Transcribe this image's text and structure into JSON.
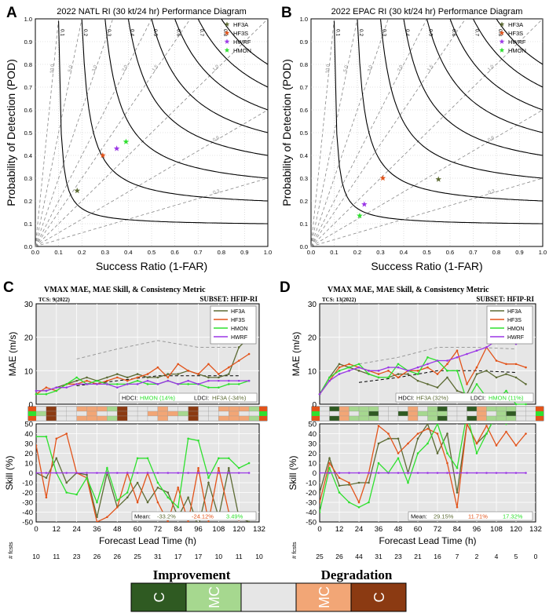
{
  "panel_letters": [
    "A",
    "B",
    "C",
    "D"
  ],
  "perf_axes": {
    "xlabel": "Success Ratio (1-FAR)",
    "ylabel": "Probability of Detection (POD)",
    "ticks": [
      "0.0",
      "0.1",
      "0.2",
      "0.3",
      "0.4",
      "0.5",
      "0.6",
      "0.7",
      "0.8",
      "0.9",
      "1.0"
    ],
    "csi_labels": [
      "0.1",
      "0.2",
      "0.3",
      "0.4",
      "0.5",
      "0.6",
      "0.7",
      "0.8"
    ],
    "bias_labels": [
      "10.0",
      "5.0",
      "3.0",
      "2.0",
      "1.5",
      "1.0",
      "0.6",
      "0.3"
    ]
  },
  "ts_axes": {
    "x_ticks": [
      "0",
      "12",
      "24",
      "36",
      "48",
      "60",
      "72",
      "84",
      "96",
      "108",
      "120",
      "132"
    ],
    "mae_ticks": [
      "0",
      "10",
      "20",
      "30"
    ],
    "skill_ticks": [
      "-50",
      "-40",
      "-30",
      "-20",
      "-10",
      "0",
      "10",
      "20",
      "30",
      "40",
      "50"
    ],
    "mae_label": "MAE (m/s)",
    "skill_label": "Skill (%)",
    "xlabel": "Forecast Lead Time (h)",
    "nfcst_label": "# fcsts"
  },
  "colors": {
    "HF3A": "#5d6b35",
    "HF3S": "#e2531a",
    "HWRF": "#9b37e6",
    "HMON": "#2fe02f",
    "grid": "#c8c8c8",
    "panel_bg": "#e6e6e6"
  },
  "legend_text": {
    "hdci": "HDCI:",
    "ldci": "LDCI:",
    "mean": "Mean:"
  },
  "bottom_legend": {
    "improvement": "Improvement",
    "degradation": "Degradation",
    "c": "C",
    "mc": "MC",
    "colors": [
      "#2f5a22",
      "#a6d88f",
      "#e6e6e6",
      "#f2a676",
      "#8b3a12"
    ]
  },
  "chart_data": [
    {
      "type": "scatter",
      "panel": "A",
      "title": "2022 NATL RI (30 kt/24 hr) Performance Diagram",
      "xlabel": "Success Ratio (1-FAR)",
      "ylabel": "Probability of Detection (POD)",
      "xlim": [
        0,
        1
      ],
      "ylim": [
        0,
        1
      ],
      "series": [
        {
          "name": "HF3A",
          "x": 0.18,
          "y": 0.245
        },
        {
          "name": "HF3S",
          "x": 0.29,
          "y": 0.4
        },
        {
          "name": "HWRF",
          "x": 0.35,
          "y": 0.43
        },
        {
          "name": "HMON",
          "x": 0.39,
          "y": 0.46
        }
      ]
    },
    {
      "type": "scatter",
      "panel": "B",
      "title": "2022 EPAC RI (30 kt/24 hr) Performance Diagram",
      "xlabel": "Success Ratio (1-FAR)",
      "ylabel": "Probability of Detection (POD)",
      "xlim": [
        0,
        1
      ],
      "ylim": [
        0,
        1
      ],
      "series": [
        {
          "name": "HF3A",
          "x": 0.55,
          "y": 0.295
        },
        {
          "name": "HF3S",
          "x": 0.31,
          "y": 0.3
        },
        {
          "name": "HWRF",
          "x": 0.23,
          "y": 0.185
        },
        {
          "name": "HMON",
          "x": 0.21,
          "y": 0.135
        }
      ]
    },
    {
      "type": "line",
      "panel": "C",
      "title": "VMAX MAE, MAE Skill, & Consistency Metric",
      "tcs": "TCS: 9(2022)",
      "subset": "SUBSET: HFIP-RI",
      "x": [
        0,
        6,
        12,
        18,
        24,
        30,
        36,
        42,
        48,
        54,
        60,
        66,
        72,
        78,
        84,
        90,
        96,
        102,
        108,
        114,
        120,
        126
      ],
      "mae_ylim": [
        0,
        30
      ],
      "skill_ylim": [
        -50,
        50
      ],
      "mae": [
        {
          "name": "HF3A",
          "values": [
            4,
            4,
            5,
            6,
            7,
            8,
            7,
            8,
            9,
            8,
            9,
            8,
            8,
            9,
            9,
            10,
            9,
            8,
            8,
            9,
            17,
            20
          ]
        },
        {
          "name": "HF3S",
          "values": [
            3,
            5,
            4,
            6,
            6,
            7,
            6,
            7,
            8,
            7,
            8,
            9,
            11,
            8,
            12,
            10,
            9,
            12,
            9,
            11,
            13,
            15
          ]
        },
        {
          "name": "HMON",
          "values": [
            3,
            3,
            4,
            6,
            8,
            6,
            7,
            6,
            6,
            6,
            7,
            6,
            6,
            7,
            6,
            6,
            6,
            5,
            5,
            6,
            6,
            7
          ]
        },
        {
          "name": "HWRF",
          "values": [
            4,
            4,
            5,
            5,
            6,
            6,
            6,
            6,
            5,
            6,
            6,
            7,
            6,
            7,
            6,
            7,
            6,
            7,
            7,
            7,
            7,
            7
          ]
        }
      ],
      "mae_reference": [
        {
          "name": "high-error reference",
          "x": [
            24,
            48,
            72,
            96,
            120
          ],
          "values": [
            13.5,
            16.5,
            19,
            17,
            17
          ]
        },
        {
          "name": "low-error reference",
          "x": [
            24,
            48,
            72,
            96,
            120
          ],
          "values": [
            5.5,
            7,
            8.5,
            8.5,
            8.5
          ]
        }
      ],
      "skill": [
        {
          "name": "HF3A",
          "values": [
            0,
            -5,
            15,
            -10,
            0,
            -2,
            -45,
            0,
            -35,
            -25,
            -10,
            -30,
            -15,
            -20,
            -45,
            -25,
            -55,
            -10,
            -45,
            5,
            -45,
            -50
          ]
        },
        {
          "name": "HF3S",
          "values": [
            28,
            -25,
            35,
            40,
            0,
            -5,
            -50,
            -45,
            -35,
            0,
            -30,
            0,
            -30,
            -50,
            -15,
            -50,
            5,
            -50,
            5,
            -40,
            -48,
            -45
          ]
        },
        {
          "name": "HMON",
          "values": [
            37,
            37,
            0,
            -20,
            -22,
            -5,
            -30,
            5,
            -28,
            -20,
            15,
            15,
            -10,
            -25,
            -35,
            35,
            33,
            -5,
            15,
            15,
            5,
            10
          ]
        },
        {
          "name": "HWRF",
          "values": [
            0,
            0,
            0,
            0,
            0,
            0,
            0,
            0,
            0,
            0,
            0,
            0,
            0,
            0,
            0,
            0,
            0,
            0,
            0,
            0,
            0,
            0
          ]
        }
      ],
      "hdci": "HMON (14%)",
      "ldci": "HF3A (-34%)",
      "mean_skill": [
        "-33.2%",
        "-24.12%",
        "3.49%"
      ],
      "n_forecasts": [
        "10",
        "11",
        "23",
        "26",
        "26",
        "25",
        "31",
        "17",
        "17",
        "10",
        "11",
        "10"
      ]
    },
    {
      "type": "line",
      "panel": "D",
      "title": "VMAX MAE, MAE Skill, & Consistency Metric",
      "tcs": "TCS: 13(2022)",
      "subset": "SUBSET: HFIP-RI",
      "x": [
        0,
        6,
        12,
        18,
        24,
        30,
        36,
        42,
        48,
        54,
        60,
        66,
        72,
        78,
        84,
        90,
        96,
        102,
        108,
        114,
        120,
        126
      ],
      "mae_ylim": [
        0,
        30
      ],
      "skill_ylim": [
        -50,
        50
      ],
      "mae": [
        {
          "name": "HF3A",
          "values": [
            3,
            8,
            12,
            11,
            10,
            9,
            8,
            8,
            9,
            9,
            7,
            6,
            5,
            8,
            4,
            3,
            9,
            10,
            8,
            9,
            8,
            6
          ]
        },
        {
          "name": "HF3S",
          "values": [
            3,
            7,
            11,
            12,
            11,
            10,
            9,
            10,
            8,
            10,
            10,
            11,
            9,
            12,
            16,
            6,
            11,
            17,
            13,
            12,
            12,
            11
          ]
        },
        {
          "name": "HMON",
          "values": [
            3,
            8,
            10,
            11,
            12,
            9,
            8,
            8,
            12,
            10,
            9,
            14,
            13,
            10,
            10,
            1,
            6,
            2,
            1,
            4,
            0,
            0
          ]
        },
        {
          "name": "HWRF",
          "values": [
            3,
            7,
            9,
            10,
            11,
            10,
            10,
            11,
            11,
            10,
            11,
            12,
            13,
            13,
            14,
            15,
            16,
            17,
            19,
            20,
            18,
            21
          ]
        }
      ],
      "mae_reference": [
        {
          "name": "high-error reference",
          "x": [
            24,
            48,
            72,
            96,
            120
          ],
          "values": [
            12,
            14,
            17,
            17,
            16.5
          ]
        },
        {
          "name": "low-error reference",
          "x": [
            24,
            48,
            72,
            96,
            120
          ],
          "values": [
            6.5,
            8,
            10,
            10,
            9.5
          ]
        }
      ],
      "skill": [
        {
          "name": "HF3A",
          "values": [
            -20,
            15,
            -13,
            -12,
            -10,
            -10,
            30,
            35,
            35,
            0,
            35,
            50,
            20,
            40,
            -20,
            50,
            30,
            40,
            60,
            50,
            60,
            65
          ]
        },
        {
          "name": "HF3S",
          "values": [
            -30,
            10,
            -5,
            -10,
            -30,
            0,
            48,
            40,
            20,
            30,
            40,
            45,
            40,
            10,
            -35,
            50,
            30,
            48,
            28,
            42,
            28,
            40
          ]
        },
        {
          "name": "HMON",
          "values": [
            -40,
            5,
            -20,
            -30,
            -35,
            -30,
            10,
            0,
            15,
            -10,
            20,
            30,
            50,
            20,
            5,
            60,
            20,
            40,
            60,
            50,
            70,
            65
          ]
        },
        {
          "name": "HWRF",
          "values": [
            0,
            0,
            0,
            0,
            0,
            0,
            0,
            0,
            0,
            0,
            0,
            0,
            0,
            0,
            0,
            0,
            0,
            0,
            0,
            0,
            0,
            0
          ]
        }
      ],
      "hdci": "HF3A (32%)",
      "ldci": "HMON (11%)",
      "mean_skill": [
        "29.15%",
        "11.71%",
        "17.32%"
      ],
      "n_forecasts": [
        "25",
        "26",
        "44",
        "31",
        "23",
        "21",
        "16",
        "7",
        "2",
        "4",
        "5",
        "0"
      ]
    }
  ]
}
